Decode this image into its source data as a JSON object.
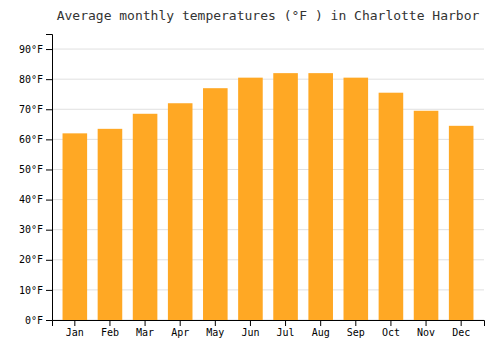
{
  "chart_data": {
    "type": "bar",
    "title": "Average monthly temperatures (°F ) in Charlotte Harbor",
    "categories": [
      "Jan",
      "Feb",
      "Mar",
      "Apr",
      "May",
      "Jun",
      "Jul",
      "Aug",
      "Sep",
      "Oct",
      "Nov",
      "Dec"
    ],
    "values": [
      62,
      63.5,
      68.5,
      72,
      77,
      80.5,
      82,
      82,
      80.5,
      75.5,
      69.5,
      64.5
    ],
    "color": "#FFA824",
    "ylim": [
      0,
      95
    ],
    "yticks": [
      {
        "value": 0,
        "label": "0°F"
      },
      {
        "value": 10,
        "label": "10°F"
      },
      {
        "value": 20,
        "label": "20°F"
      },
      {
        "value": 30,
        "label": "30°F"
      },
      {
        "value": 40,
        "label": "40°F"
      },
      {
        "value": 50,
        "label": "50°F"
      },
      {
        "value": 60,
        "label": "60°F"
      },
      {
        "value": 70,
        "label": "70°F"
      },
      {
        "value": 80,
        "label": "80°F"
      },
      {
        "value": 90,
        "label": "90°F"
      }
    ],
    "grid": true
  }
}
